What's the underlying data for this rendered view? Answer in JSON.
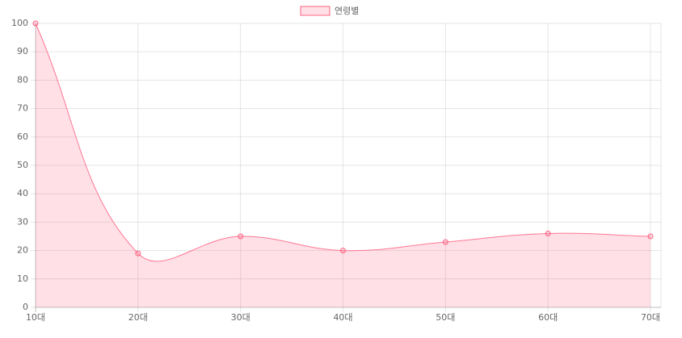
{
  "chart_data": {
    "type": "line",
    "legend": "top",
    "grid": true,
    "fill": true,
    "categories": [
      "10대",
      "20대",
      "30대",
      "40대",
      "50대",
      "60대",
      "70대"
    ],
    "series": [
      {
        "name": "연령별",
        "color": "#ff6384",
        "values": [
          100,
          19,
          25,
          20,
          23,
          26,
          25
        ]
      }
    ],
    "ylim": [
      0,
      100
    ],
    "yticks": [
      0,
      10,
      20,
      30,
      40,
      50,
      60,
      70,
      80,
      90,
      100
    ]
  }
}
